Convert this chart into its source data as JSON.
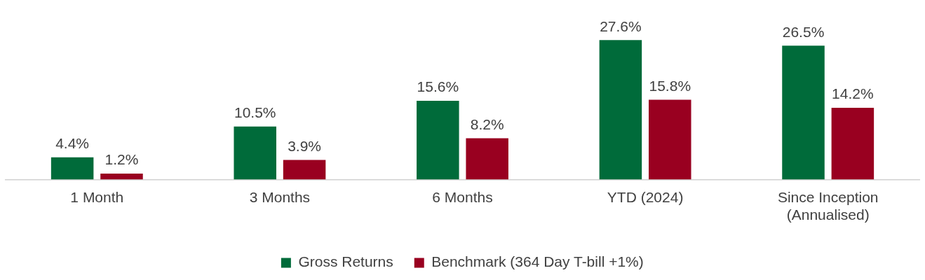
{
  "chart_data": {
    "type": "bar",
    "categories": [
      "1 Month",
      "3 Months",
      "6 Months",
      "YTD (2024)",
      "Since Inception (Annualised)"
    ],
    "series": [
      {
        "name": "Gross Returns",
        "color": "#006b3a",
        "values": [
          4.4,
          10.5,
          15.6,
          27.6,
          26.5
        ],
        "value_labels": [
          "4.4%",
          "10.5%",
          "15.6%",
          "27.6%",
          "26.5%"
        ]
      },
      {
        "name": "Benchmark (364 Day T-bill +1%)",
        "color": "#990020",
        "values": [
          1.2,
          3.9,
          8.2,
          15.8,
          14.2
        ],
        "value_labels": [
          "1.2%",
          "3.9%",
          "8.2%",
          "15.8%",
          "14.2%"
        ]
      }
    ],
    "legend": "bottom",
    "grid": false
  }
}
